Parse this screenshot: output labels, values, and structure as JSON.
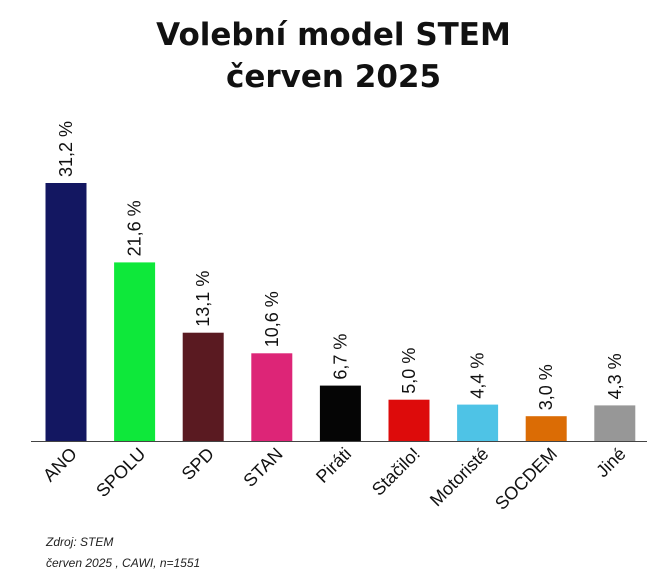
{
  "chart_data": {
    "type": "bar",
    "title": "Volební model STEM",
    "subtitle": "červen 2025",
    "categories": [
      "ANO",
      "SPOLU",
      "SPD",
      "STAN",
      "Piráti",
      "Stačilo!",
      "Motoristé",
      "SOCDEM",
      "Jiné"
    ],
    "values": [
      31.2,
      21.6,
      13.1,
      10.6,
      6.7,
      5.0,
      4.4,
      3.0,
      4.3
    ],
    "value_labels": [
      "31,2 %",
      "21,6 %",
      "13,1 %",
      "10,6 %",
      "6,7 %",
      "5,0 %",
      "4,4 %",
      "3,0 %",
      "4,3 %"
    ],
    "colors": [
      "#131761",
      "#0ee83a",
      "#5a1a21",
      "#dd2577",
      "#050505",
      "#dd0b0b",
      "#4ec3e6",
      "#db6c05",
      "#979797"
    ],
    "xlabel": "",
    "ylabel": "",
    "ylim": [
      0,
      31.2
    ],
    "grid": false,
    "legend": "none"
  },
  "footer": {
    "source": "Zdroj: STEM",
    "details": "červen 2025 , CAWI, n=1551"
  }
}
